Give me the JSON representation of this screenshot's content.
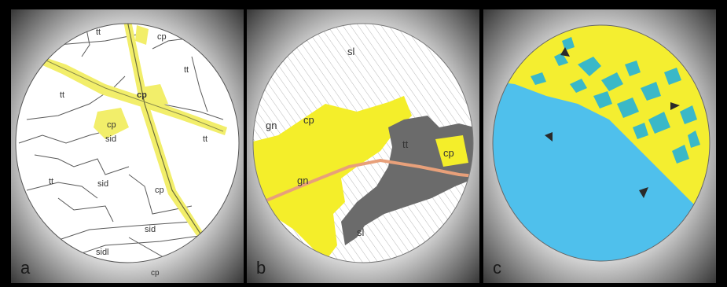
{
  "panels": [
    {
      "letter": "a",
      "labels": [
        "tt",
        "cp",
        "tt",
        "tt",
        "cp",
        "cp",
        "sid",
        "tt",
        "tt",
        "sid",
        "cp",
        "sid",
        "sidl",
        "cp"
      ],
      "colors": {
        "mineral": "#f2ee6a",
        "background": "#ffffff",
        "lines": "#555555"
      }
    },
    {
      "letter": "b",
      "labels": [
        "sl",
        "gn",
        "cp",
        "gn",
        "tt",
        "cp",
        "sl"
      ],
      "colors": {
        "mineral": "#f4ee2a",
        "dark_mineral": "#6b6b6b",
        "vein": "#e8a07a",
        "hatch": "#b8b8b8"
      }
    },
    {
      "letter": "c",
      "labels": [],
      "colors": {
        "upper": "#f4ee30",
        "lower": "#4fc0ec",
        "patches": "#3ab8c8"
      }
    }
  ]
}
